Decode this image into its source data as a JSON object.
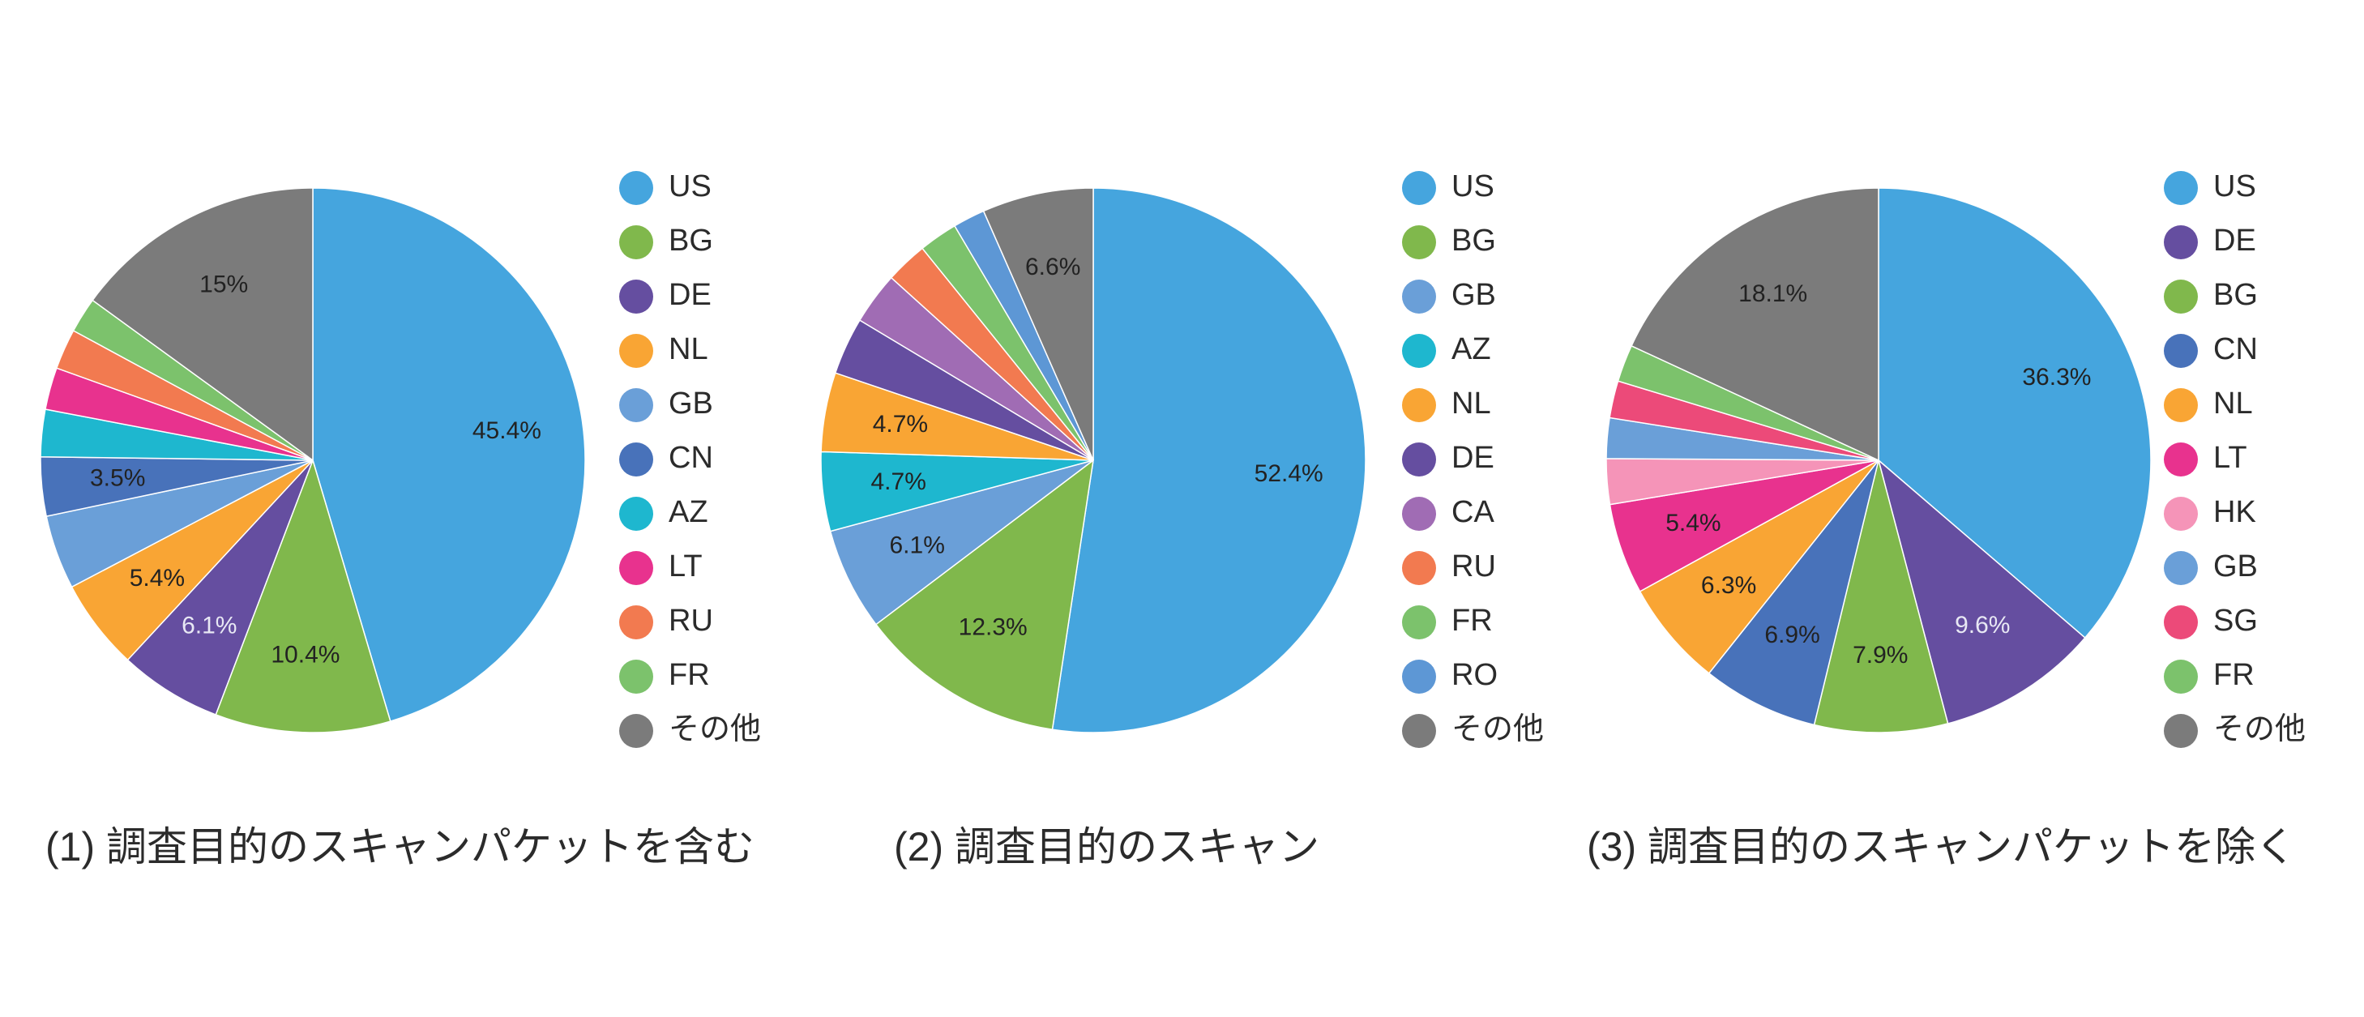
{
  "chart_data": [
    {
      "type": "pie",
      "title": "(1) 調査目的のスキャンパケットを含む",
      "slices": [
        {
          "label": "US",
          "value": 45.4,
          "color": "#45a5de",
          "value_label": "45.4%",
          "label_color": "#222222"
        },
        {
          "label": "BG",
          "value": 10.4,
          "color": "#80b84c",
          "value_label": "10.4%",
          "label_color": "#222222"
        },
        {
          "label": "DE",
          "value": 6.1,
          "color": "#654ea0",
          "value_label": "6.1%",
          "label_color": "#e8e8f4"
        },
        {
          "label": "NL",
          "value": 5.4,
          "color": "#f9a534",
          "value_label": "5.4%",
          "label_color": "#222222"
        },
        {
          "label": "GB",
          "value": 4.4,
          "color": "#6a9fd8",
          "value_label": "",
          "label_color": "#222222"
        },
        {
          "label": "CN",
          "value": 3.5,
          "color": "#4872ba",
          "value_label": "3.5%",
          "label_color": "#222222"
        },
        {
          "label": "AZ",
          "value": 2.8,
          "color": "#1eb7cf",
          "value_label": "",
          "label_color": "#222222"
        },
        {
          "label": "LT",
          "value": 2.5,
          "color": "#e8328e",
          "value_label": "",
          "label_color": "#222222"
        },
        {
          "label": "RU",
          "value": 2.4,
          "color": "#f27a50",
          "value_label": "",
          "label_color": "#222222"
        },
        {
          "label": "FR",
          "value": 2.1,
          "color": "#7cc26c",
          "value_label": "",
          "label_color": "#222222"
        },
        {
          "label": "その他",
          "value": 15.0,
          "color": "#7b7b7b",
          "value_label": "15%",
          "label_color": "#222222"
        }
      ]
    },
    {
      "type": "pie",
      "title": "(2) 調査目的のスキャン",
      "slices": [
        {
          "label": "US",
          "value": 52.4,
          "color": "#45a5de",
          "value_label": "52.4%",
          "label_color": "#222222"
        },
        {
          "label": "BG",
          "value": 12.3,
          "color": "#80b84c",
          "value_label": "12.3%",
          "label_color": "#222222"
        },
        {
          "label": "GB",
          "value": 6.1,
          "color": "#6a9fd8",
          "value_label": "6.1%",
          "label_color": "#222222"
        },
        {
          "label": "AZ",
          "value": 4.7,
          "color": "#1eb7cf",
          "value_label": "4.7%",
          "label_color": "#222222"
        },
        {
          "label": "NL",
          "value": 4.7,
          "color": "#f9a534",
          "value_label": "4.7%",
          "label_color": "#222222"
        },
        {
          "label": "DE",
          "value": 3.4,
          "color": "#654ea0",
          "value_label": "",
          "label_color": "#222222"
        },
        {
          "label": "CA",
          "value": 3.1,
          "color": "#a06cb4",
          "value_label": "",
          "label_color": "#222222"
        },
        {
          "label": "RU",
          "value": 2.5,
          "color": "#f27a50",
          "value_label": "",
          "label_color": "#222222"
        },
        {
          "label": "FR",
          "value": 2.3,
          "color": "#7cc26c",
          "value_label": "",
          "label_color": "#222222"
        },
        {
          "label": "RO",
          "value": 1.9,
          "color": "#5d97d5",
          "value_label": "",
          "label_color": "#222222"
        },
        {
          "label": "その他",
          "value": 6.6,
          "color": "#7b7b7b",
          "value_label": "6.6%",
          "label_color": "#222222"
        }
      ]
    },
    {
      "type": "pie",
      "title": "(3) 調査目的のスキャンパケットを除く",
      "slices": [
        {
          "label": "US",
          "value": 36.3,
          "color": "#45a5de",
          "value_label": "36.3%",
          "label_color": "#222222"
        },
        {
          "label": "DE",
          "value": 9.6,
          "color": "#654ea0",
          "value_label": "9.6%",
          "label_color": "#e8e8f4"
        },
        {
          "label": "BG",
          "value": 7.9,
          "color": "#80b84c",
          "value_label": "7.9%",
          "label_color": "#222222"
        },
        {
          "label": "CN",
          "value": 6.9,
          "color": "#4872ba",
          "value_label": "6.9%",
          "label_color": "#222222"
        },
        {
          "label": "NL",
          "value": 6.3,
          "color": "#f9a534",
          "value_label": "6.3%",
          "label_color": "#222222"
        },
        {
          "label": "LT",
          "value": 5.4,
          "color": "#e8328e",
          "value_label": "5.4%",
          "label_color": "#222222"
        },
        {
          "label": "HK",
          "value": 2.7,
          "color": "#f594b8",
          "value_label": "",
          "label_color": "#222222"
        },
        {
          "label": "GB",
          "value": 2.4,
          "color": "#6a9fd8",
          "value_label": "",
          "label_color": "#222222"
        },
        {
          "label": "SG",
          "value": 2.2,
          "color": "#ec4a79",
          "value_label": "",
          "label_color": "#222222"
        },
        {
          "label": "FR",
          "value": 2.2,
          "color": "#7cc26c",
          "value_label": "",
          "label_color": "#222222"
        },
        {
          "label": "その他",
          "value": 18.1,
          "color": "#7b7b7b",
          "value_label": "18.1%",
          "label_color": "#222222"
        }
      ]
    }
  ]
}
